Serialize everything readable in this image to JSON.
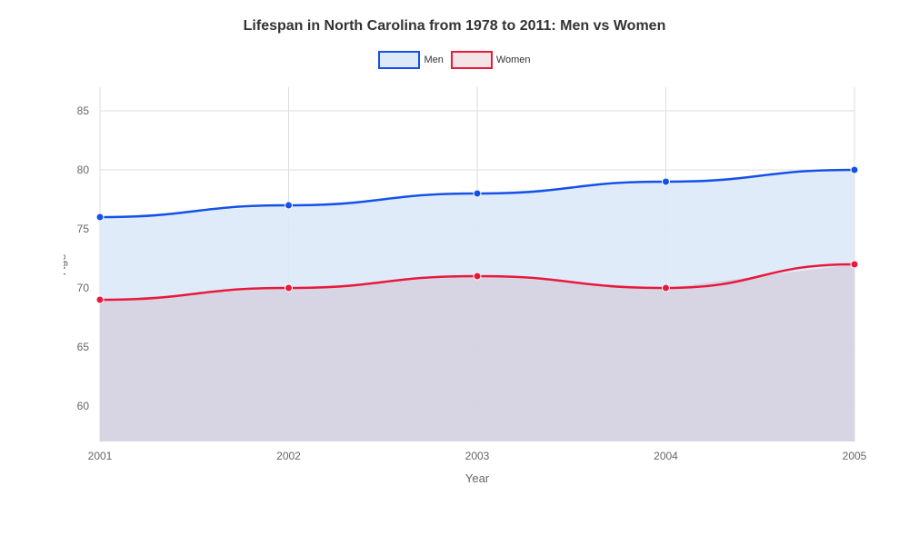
{
  "chart": {
    "type": "line-area",
    "title": "Lifespan in North Carolina from 1978 to 2011: Men vs Women",
    "title_fontsize": 16,
    "title_color": "#333333",
    "background_color": "#ffffff",
    "plot_background_color": "#ffffff",
    "grid_color": "#dddddd",
    "xlabel": "Year",
    "ylabel": "Age",
    "axis_label_color": "#666666",
    "tick_label_color": "#666666",
    "axis_label_fontsize": 13,
    "tick_label_fontsize": 12,
    "x_categories": [
      "2001",
      "2002",
      "2003",
      "2004",
      "2005"
    ],
    "ylim": [
      57,
      87
    ],
    "yticks": [
      60,
      65,
      70,
      75,
      80,
      85
    ],
    "series": [
      {
        "name": "Men",
        "values": [
          76,
          77,
          78,
          79,
          80
        ],
        "line_color": "#1351e8",
        "fill_color": "#dde9f9",
        "fill_opacity": 0.9,
        "marker_color": "#1351e8",
        "line_width": 2.5,
        "marker_radius": 4
      },
      {
        "name": "Women",
        "values": [
          69,
          70,
          71,
          70,
          72
        ],
        "line_color": "#e8193a",
        "fill_color": "#d3cbd8",
        "fill_opacity": 0.7,
        "marker_color": "#e8193a",
        "line_width": 2.5,
        "marker_radius": 4
      }
    ],
    "legend": {
      "items": [
        {
          "label": "Men",
          "border_color": "#1351e8",
          "fill_color": "#dde9f9"
        },
        {
          "label": "Women",
          "border_color": "#e8193a",
          "fill_color": "#f5e4e6"
        }
      ]
    }
  }
}
